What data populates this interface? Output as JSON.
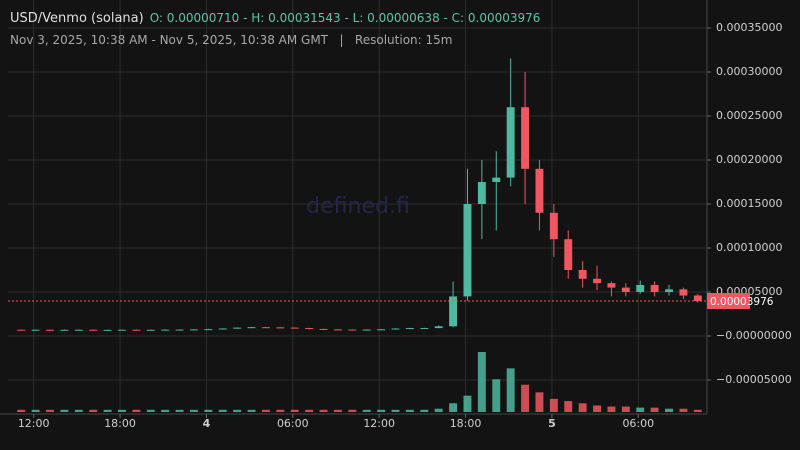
{
  "chart_data": {
    "type": "candlestick",
    "title": "USD/Venmo (solana)",
    "ohlc_legend": "O: 0.00000710 - H: 0.00031543 - L: 0.00000638 - C: 0.00003976",
    "subtitle": "Nov 3, 2025, 10:38 AM - Nov 5, 2025, 10:38 AM GMT   |   Resolution: 15m",
    "watermark": "defined.fi",
    "up_color": "#4fb8a0",
    "down_color": "#ef5861",
    "grid": true,
    "xlim": [
      "2025-11-03T10:38",
      "2025-11-05T10:38"
    ],
    "xticks": [
      {
        "value": "2025-11-03T12:00",
        "label": "12:00"
      },
      {
        "value": "2025-11-03T18:00",
        "label": "18:00"
      },
      {
        "value": "2025-11-04T00:00",
        "label": "4"
      },
      {
        "value": "2025-11-04T06:00",
        "label": "06:00"
      },
      {
        "value": "2025-11-04T12:00",
        "label": "12:00"
      },
      {
        "value": "2025-11-04T18:00",
        "label": "18:00"
      },
      {
        "value": "2025-11-05T00:00",
        "label": "5"
      },
      {
        "value": "2025-11-05T06:00",
        "label": "06:00"
      }
    ],
    "ylim": [
      -8.64e-05,
      0.0003705
    ],
    "yticks": [
      {
        "value": 0.00035,
        "label": "0.00035000"
      },
      {
        "value": 0.0003,
        "label": "0.00030000"
      },
      {
        "value": 0.00025,
        "label": "0.00025000"
      },
      {
        "value": 0.0002,
        "label": "0.00020000"
      },
      {
        "value": 0.00015,
        "label": "0.00015000"
      },
      {
        "value": 0.0001,
        "label": "0.00010000"
      },
      {
        "value": 5e-05,
        "label": "0.00005000"
      },
      {
        "value": 0,
        "label": "−0.00000000"
      },
      {
        "value": -5e-05,
        "label": "−0.00005000"
      }
    ],
    "last_price": {
      "value": 3.976e-05,
      "label": "0.00003976"
    },
    "x": [
      "2025-11-03T10:38",
      "2025-11-03T11:38",
      "2025-11-03T12:38",
      "2025-11-03T13:38",
      "2025-11-03T14:38",
      "2025-11-03T15:38",
      "2025-11-03T16:38",
      "2025-11-03T17:38",
      "2025-11-03T18:38",
      "2025-11-03T19:38",
      "2025-11-03T20:38",
      "2025-11-03T21:38",
      "2025-11-03T22:38",
      "2025-11-03T23:38",
      "2025-11-04T00:38",
      "2025-11-04T01:38",
      "2025-11-04T02:38",
      "2025-11-04T03:38",
      "2025-11-04T04:38",
      "2025-11-04T05:38",
      "2025-11-04T06:38",
      "2025-11-04T07:38",
      "2025-11-04T08:38",
      "2025-11-04T09:38",
      "2025-11-04T10:38",
      "2025-11-04T11:38",
      "2025-11-04T12:38",
      "2025-11-04T13:38",
      "2025-11-04T14:38",
      "2025-11-04T15:38",
      "2025-11-04T16:38",
      "2025-11-04T17:38",
      "2025-11-04T18:38",
      "2025-11-04T19:38",
      "2025-11-04T20:38",
      "2025-11-04T21:38",
      "2025-11-04T22:38",
      "2025-11-04T23:38",
      "2025-11-05T00:38",
      "2025-11-05T01:38",
      "2025-11-05T02:38",
      "2025-11-05T03:38",
      "2025-11-05T04:38",
      "2025-11-05T05:38",
      "2025-11-05T06:38",
      "2025-11-05T07:38",
      "2025-11-05T08:38",
      "2025-11-05T09:38"
    ],
    "open": [
      7.1e-06,
      7e-06,
      7.1e-06,
      7e-06,
      7e-06,
      7.1e-06,
      7e-06,
      7e-06,
      7.1e-06,
      7e-06,
      7e-06,
      7.2e-06,
      7.3e-06,
      7.5e-06,
      7.8e-06,
      8.5e-06,
      9.5e-06,
      1e-05,
      9.8e-06,
      9.5e-06,
      9e-06,
      8e-06,
      7.5e-06,
      7.3e-06,
      7.2e-06,
      7.3e-06,
      7.6e-06,
      8.5e-06,
      9e-06,
      9e-06,
      1.1e-05,
      4.5e-05,
      0.00015,
      0.000175,
      0.00018,
      0.00026,
      0.00019,
      0.00014,
      0.00011,
      7.5e-05,
      6.5e-05,
      6e-05,
      5.5e-05,
      5e-05,
      5.8e-05,
      5e-05,
      5.3e-05,
      4.6e-05
    ],
    "high": [
      7.4e-06,
      7.4e-06,
      7.4e-06,
      7.3e-06,
      7.4e-06,
      7.4e-06,
      7.3e-06,
      7.4e-06,
      7.4e-06,
      7.3e-06,
      7.5e-06,
      7.6e-06,
      7.8e-06,
      8.1e-06,
      8.8e-06,
      9.8e-06,
      1.03e-05,
      1.03e-05,
      1.01e-05,
      9.8e-06,
      9.3e-06,
      8.3e-06,
      7.8e-06,
      7.6e-06,
      7.6e-06,
      7.9e-06,
      8.8e-06,
      9.3e-06,
      9.3e-06,
      1.2e-05,
      6.2e-05,
      0.00019,
      0.0002,
      0.00021,
      0.00031543,
      0.0003,
      0.0002,
      0.00015,
      0.00012,
      8.5e-05,
      8e-05,
      6.2e-05,
      6e-05,
      6.3e-05,
      6.2e-05,
      5.8e-05,
      5.5e-05,
      4.8e-05
    ],
    "low": [
      6.7e-06,
      6.38e-06,
      6.7e-06,
      6.7e-06,
      6.7e-06,
      6.7e-06,
      6.7e-06,
      6.7e-06,
      6.7e-06,
      6.7e-06,
      6.7e-06,
      6.9e-06,
      7e-06,
      7.2e-06,
      7.5e-06,
      8.2e-06,
      9.2e-06,
      9.5e-06,
      9.2e-06,
      8.7e-06,
      7.7e-06,
      7.2e-06,
      7e-06,
      6.9e-06,
      6.9e-06,
      7e-06,
      7.3e-06,
      8.2e-06,
      8.7e-06,
      8.7e-06,
      1e-05,
      4e-05,
      0.00011,
      0.00012,
      0.00017,
      0.00015,
      0.00012,
      9e-05,
      6.5e-05,
      5.5e-05,
      5.2e-05,
      4.5e-05,
      4.5e-05,
      4.8e-05,
      4.5e-05,
      4.6e-05,
      4.2e-05,
      3.8e-05
    ],
    "close": [
      7e-06,
      7.1e-06,
      7e-06,
      7e-06,
      7.1e-06,
      7e-06,
      7e-06,
      7.1e-06,
      7e-06,
      7e-06,
      7.2e-06,
      7.3e-06,
      7.5e-06,
      7.8e-06,
      8.5e-06,
      9.5e-06,
      1e-05,
      9.8e-06,
      9.5e-06,
      9e-06,
      8e-06,
      7.5e-06,
      7.3e-06,
      7.2e-06,
      7.3e-06,
      7.6e-06,
      8.5e-06,
      9e-06,
      9e-06,
      1.1e-05,
      4.5e-05,
      0.00015,
      0.000175,
      0.00018,
      0.00026,
      0.00019,
      0.00014,
      0.00011,
      7.5e-05,
      6.5e-05,
      6e-05,
      5.5e-05,
      5e-05,
      5.8e-05,
      5e-05,
      5.3e-05,
      4.6e-05,
      3.976e-05
    ],
    "volume": [
      2,
      2,
      2,
      2,
      2,
      2,
      2,
      2,
      2,
      2,
      2,
      2,
      2,
      2,
      2,
      2,
      2,
      2,
      2,
      2,
      2,
      2,
      2,
      2,
      2,
      2,
      2,
      2,
      2,
      3,
      8,
      15,
      55,
      30,
      40,
      25,
      18,
      12,
      10,
      8,
      6,
      5,
      5,
      4,
      4,
      3,
      3,
      2
    ]
  }
}
